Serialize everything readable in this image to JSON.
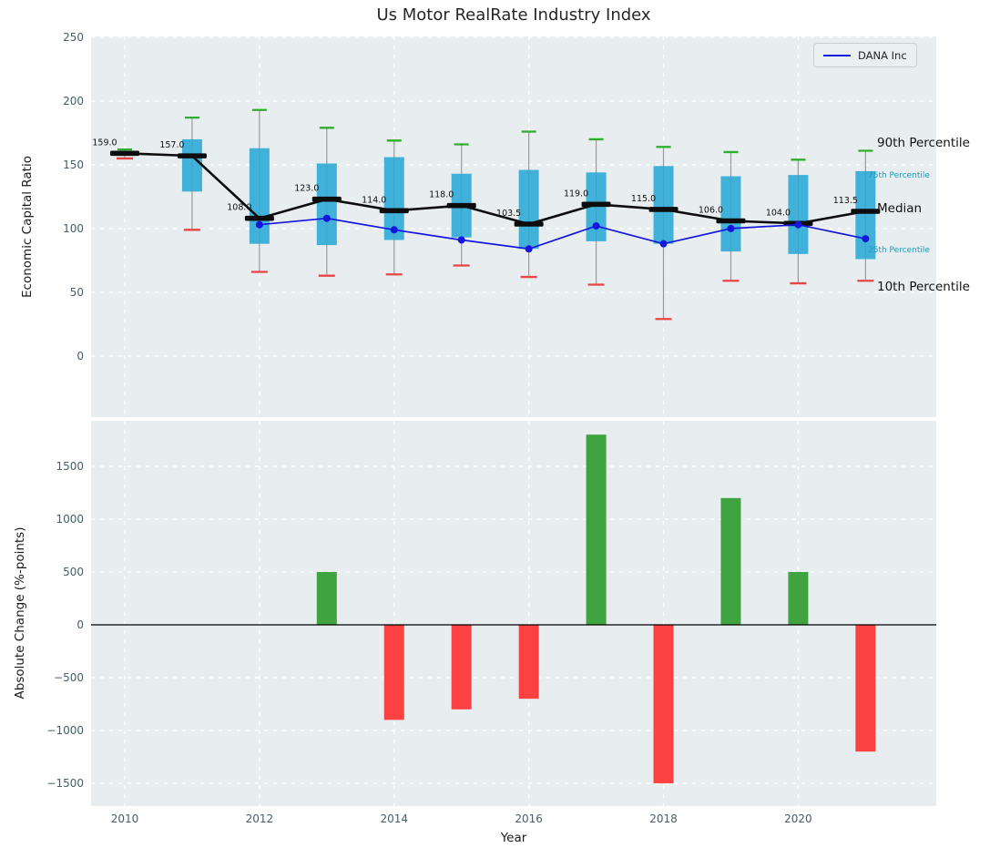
{
  "title": "Us Motor RealRate Industry Index",
  "xlabel": "Year",
  "ylabel_top": "Economic Capital Ratio",
  "ylabel_bottom": "Absolute Change (%-points)",
  "legend": {
    "label": "DANA Inc"
  },
  "annotations": {
    "p90": "90th Percentile",
    "p75": "75th Percentile",
    "median": "Median",
    "p25": "25th Percentile",
    "p10": "10th Percentile"
  },
  "colors": {
    "panel_bg": "#e8edf0",
    "grid": "#ffffff",
    "box": "#29a8d6",
    "whisker": "#9a9a9a",
    "cap_high": "#2eae2e",
    "cap_low": "#e64545",
    "median": "#0d0d0d",
    "company_line": "#1515e0",
    "bar_positive": "#3fa43f",
    "bar_negative": "#fb4141",
    "tick": "#475d68",
    "zero_line": "#000000"
  },
  "chart_data": [
    {
      "type": "boxplot",
      "title": "Us Motor RealRate Industry Index",
      "ylabel": "Economic Capital Ratio",
      "ylim": [
        -48,
        250.7
      ],
      "xlim": [
        2009.5,
        2022.05
      ],
      "yticks": [
        0,
        50,
        100,
        150,
        200,
        250
      ],
      "xticks": [
        2010,
        2012,
        2014,
        2016,
        2018,
        2020
      ],
      "grid": true,
      "legend_position": "upper right",
      "years": [
        2010,
        2011,
        2012,
        2013,
        2014,
        2015,
        2016,
        2017,
        2018,
        2019,
        2020,
        2021
      ],
      "p90": [
        162,
        187,
        193,
        179,
        169,
        166,
        176,
        170,
        164,
        160,
        154,
        161
      ],
      "p75": [
        160,
        170,
        163,
        151,
        156,
        143,
        146,
        144,
        149,
        141,
        142,
        145
      ],
      "median": [
        159,
        157,
        108,
        123,
        114,
        118,
        103.5,
        119,
        115,
        106,
        104,
        113.5
      ],
      "p25": [
        157,
        129,
        88,
        87,
        91,
        93,
        84,
        90,
        88,
        82,
        80,
        76
      ],
      "p10": [
        155,
        99,
        66,
        63,
        64,
        71,
        62,
        56,
        29,
        59,
        57,
        59
      ],
      "median_labels": [
        "159.0",
        "157.0",
        "108.0",
        "123.0",
        "114.0",
        "118.0",
        "103.5",
        "119.0",
        "115.0",
        "106.0",
        "104.0",
        "113.5"
      ],
      "series": [
        {
          "name": "DANA Inc",
          "years": [
            2012,
            2013,
            2014,
            2015,
            2016,
            2017,
            2018,
            2019,
            2020,
            2021
          ],
          "values": [
            103,
            108,
            99,
            91,
            84,
            102,
            88,
            100,
            103,
            92
          ]
        }
      ]
    },
    {
      "type": "bar",
      "ylabel": "Absolute Change (%-points)",
      "xlabel": "Year",
      "ylim": [
        -1716,
        1931
      ],
      "xlim": [
        2009.5,
        2022.05
      ],
      "yticks": [
        -1500,
        -1000,
        -500,
        0,
        500,
        1000,
        1500
      ],
      "xticks": [
        2010,
        2012,
        2014,
        2016,
        2018,
        2020
      ],
      "grid": true,
      "years": [
        2013,
        2014,
        2015,
        2016,
        2017,
        2018,
        2019,
        2020,
        2021
      ],
      "values": [
        500,
        -900,
        -800,
        -700,
        1800,
        -1500,
        1200,
        500,
        -1200
      ]
    }
  ]
}
